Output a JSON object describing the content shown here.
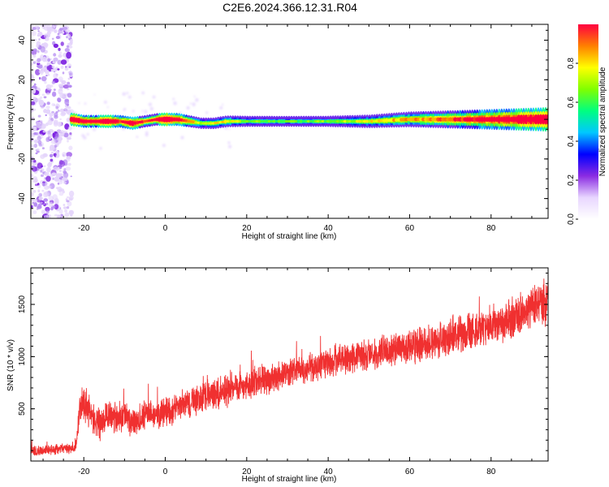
{
  "figure_title": "C2E6.2024.366.12.31.R04",
  "chart_data": [
    {
      "type": "heatmap",
      "panel": "spectrogram",
      "xlabel": "Height of straight line (km)",
      "ylabel": "Frequency (Hz)",
      "xlim": [
        -33,
        94
      ],
      "ylim": [
        -50,
        48
      ],
      "x_ticks": [
        "-20",
        "0",
        "20",
        "40",
        "60",
        "80"
      ],
      "x_tick_values": [
        -20,
        0,
        20,
        40,
        60,
        80
      ],
      "y_ticks": [
        "-40",
        "-20",
        "0",
        "20",
        "40"
      ],
      "y_tick_values": [
        -40,
        -20,
        0,
        20,
        40
      ],
      "colorbar": {
        "label": "Normalized spectral amplitude",
        "ticks": [
          "0.0",
          "0.2",
          "0.4",
          "0.6",
          "0.8"
        ],
        "tick_values": [
          0.0,
          0.2,
          0.4,
          0.6,
          0.8
        ],
        "range": [
          0,
          1
        ],
        "colormap": [
          "#ffffff",
          "#e8d6ff",
          "#8a2be2",
          "#0000ff",
          "#00c8ff",
          "#00ff80",
          "#80ff00",
          "#ffff00",
          "#ff8000",
          "#ff0040"
        ]
      },
      "noise_region_x": [
        -33,
        -23
      ],
      "ridge": {
        "x": [
          -23,
          -20,
          -17,
          -14,
          -11,
          -8,
          -5,
          -2,
          0,
          3,
          6,
          9,
          12,
          15,
          20,
          30,
          40,
          50,
          60,
          70,
          80,
          90,
          94
        ],
        "frequency": [
          0,
          -1,
          -1,
          -1,
          -1,
          -2,
          -1,
          0,
          0,
          0,
          -1,
          -2,
          -2,
          -1,
          -1,
          -1,
          -1,
          -1,
          0,
          0,
          0,
          0,
          0
        ],
        "amplitude": [
          0.9,
          0.8,
          0.75,
          0.9,
          0.7,
          0.85,
          0.6,
          0.7,
          0.95,
          0.8,
          0.6,
          0.4,
          0.45,
          0.5,
          0.35,
          0.3,
          0.35,
          0.45,
          0.55,
          0.65,
          0.75,
          0.85,
          0.9
        ]
      }
    },
    {
      "type": "line",
      "panel": "snr",
      "xlabel": "Height of straight line (km)",
      "ylabel": "SNR (10 * v/v)",
      "xlim": [
        -33,
        94
      ],
      "ylim": [
        0,
        1850
      ],
      "x_ticks": [
        "-20",
        "0",
        "20",
        "40",
        "60",
        "80"
      ],
      "x_tick_values": [
        -20,
        0,
        20,
        40,
        60,
        80
      ],
      "y_ticks": [
        "500",
        "1000",
        "1500"
      ],
      "y_tick_values": [
        500,
        1000,
        1500
      ],
      "color": "#f03030",
      "x": [
        -33,
        -30,
        -27,
        -24,
        -22,
        -21,
        -20,
        -19,
        -18,
        -16,
        -14,
        -12,
        -10,
        -8,
        -6,
        -4,
        -2,
        0,
        2,
        4,
        6,
        8,
        10,
        12,
        14,
        16,
        18,
        20,
        24,
        28,
        32,
        36,
        40,
        44,
        48,
        52,
        56,
        60,
        64,
        68,
        72,
        76,
        80,
        84,
        88,
        91,
        94
      ],
      "mean": [
        90,
        100,
        110,
        120,
        130,
        500,
        560,
        520,
        420,
        360,
        440,
        400,
        460,
        350,
        380,
        460,
        420,
        480,
        500,
        530,
        560,
        600,
        620,
        640,
        660,
        680,
        700,
        720,
        780,
        820,
        860,
        900,
        940,
        980,
        1000,
        1030,
        1060,
        1090,
        1120,
        1160,
        1200,
        1250,
        1300,
        1360,
        1420,
        1480,
        1540
      ],
      "spread": [
        60,
        60,
        60,
        60,
        60,
        180,
        220,
        200,
        180,
        170,
        180,
        170,
        180,
        170,
        170,
        170,
        170,
        170,
        170,
        170,
        170,
        170,
        170,
        170,
        170,
        170,
        170,
        170,
        170,
        170,
        170,
        170,
        170,
        180,
        180,
        180,
        190,
        190,
        200,
        200,
        210,
        220,
        230,
        240,
        250,
        260,
        270
      ]
    }
  ]
}
